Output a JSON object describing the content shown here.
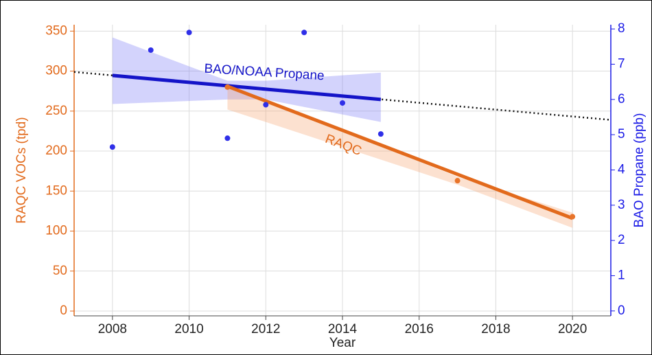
{
  "chart_data": {
    "type": "scatter",
    "xlabel": "Year",
    "ylabel": "RAQC VOCs (tpd)",
    "y2label": "BAO Propane (ppb)",
    "xlim": [
      2007,
      2021
    ],
    "xticks": [
      2008,
      2010,
      2012,
      2014,
      2016,
      2018,
      2020
    ],
    "ylim": [
      -6,
      358
    ],
    "yticks": [
      0,
      50,
      100,
      150,
      200,
      250,
      300,
      350
    ],
    "y2lim": [
      -0.14,
      8.12
    ],
    "y2ticks": [
      0,
      1,
      2,
      3,
      4,
      5,
      6,
      7,
      8
    ],
    "grid": true,
    "left_color": "#e26a1c",
    "right_color": "#1a1ae6",
    "series": [
      {
        "color": "#2f2fe8",
        "axis": "y2",
        "x": [
          2008,
          2009,
          2010,
          2011,
          2012,
          2013,
          2014,
          2015
        ],
        "values": [
          4.65,
          7.4,
          7.9,
          4.9,
          5.85,
          7.9,
          5.9,
          5.02
        ]
      },
      {
        "color": "#e8742a",
        "x": [
          2011,
          2017,
          2020
        ],
        "values": [
          280,
          163,
          118
        ]
      }
    ],
    "fits": [
      {
        "color": "#1414c8",
        "band_color": "#7878f5",
        "axis": "y2",
        "label": "BAO/NOAA Propane",
        "x": [
          2008,
          2015
        ],
        "values": [
          6.68,
          6.0
        ],
        "extend_x": [
          2007,
          2021
        ],
        "extend_values": [
          6.78,
          5.42
        ],
        "band_x": [
          2008,
          2011,
          2012,
          2015
        ],
        "band_lower": [
          5.87,
          6.0,
          6.0,
          5.36
        ],
        "band_upper": [
          7.76,
          6.53,
          6.53,
          6.76
        ]
      },
      {
        "color": "#e26a1c",
        "band_color": "#f5a570",
        "label": "RAQC",
        "x": [
          2011,
          2020
        ],
        "values": [
          281,
          116
        ],
        "band_x": [
          2011,
          2017,
          2020
        ],
        "band_lower": [
          252,
          158,
          104
        ],
        "band_upper": [
          281,
          168,
          123
        ]
      }
    ]
  }
}
